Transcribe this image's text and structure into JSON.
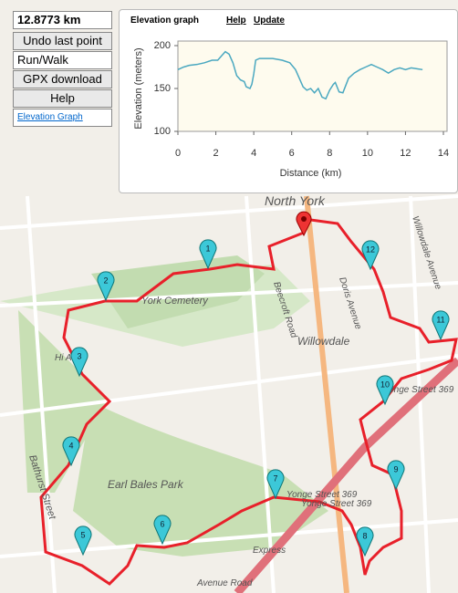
{
  "controls": {
    "distance": "12.8773 km",
    "undo": "Undo last point",
    "mode": "Run/Walk",
    "gpx": "GPX download",
    "help": "Help",
    "elevation_link": "Elevation Graph"
  },
  "elevation_panel": {
    "title": "Elevation graph",
    "help": "Help",
    "update": "Update"
  },
  "chart_data": {
    "type": "line",
    "x_label": "Distance (km)",
    "y_label": "Elevation (meters)",
    "color": "#4aa8c0",
    "x": [
      0,
      0.3,
      0.6,
      1,
      1.4,
      1.8,
      2.1,
      2.3,
      2.5,
      2.7,
      2.9,
      3.1,
      3.3,
      3.5,
      3.6,
      3.8,
      3.9,
      4.0,
      4.1,
      4.3,
      4.7,
      5.0,
      5.5,
      5.9,
      6.2,
      6.4,
      6.6,
      6.8,
      7.0,
      7.2,
      7.4,
      7.6,
      7.8,
      8.0,
      8.2,
      8.3,
      8.5,
      8.7,
      9.0,
      9.3,
      9.6,
      9.9,
      10.2,
      10.5,
      10.8,
      11.1,
      11.4,
      11.7,
      12.0,
      12.3,
      12.6,
      12.9
    ],
    "values": [
      172,
      175,
      177,
      178,
      180,
      183,
      183,
      188,
      193,
      190,
      180,
      165,
      160,
      158,
      152,
      150,
      155,
      167,
      183,
      185,
      185,
      185,
      183,
      180,
      172,
      162,
      152,
      148,
      150,
      145,
      150,
      140,
      138,
      148,
      155,
      157,
      146,
      145,
      162,
      168,
      172,
      175,
      178,
      175,
      172,
      168,
      172,
      174,
      172,
      174,
      173,
      172
    ],
    "xlim": [
      0,
      14
    ],
    "ylim": [
      100,
      200
    ],
    "xticks": [
      0,
      2,
      4,
      6,
      8,
      10,
      12,
      14
    ],
    "yticks": [
      100,
      150,
      200
    ]
  },
  "map": {
    "labels": [
      "North York",
      "York Cemetery",
      "Willowdale",
      "Earl Bales Park",
      "Yonge Street 369",
      "Yonge Street 369",
      "Yonge Street 369",
      "Bathurst Street",
      "Beecroft Road",
      "Doris Avenue",
      "Avenue Road",
      "Express",
      "Willowdale Avenue",
      "Hi Ave"
    ],
    "markers": [
      "1",
      "2",
      "3",
      "4",
      "5",
      "6",
      "7",
      "8",
      "9",
      "10",
      "11",
      "12"
    ]
  }
}
